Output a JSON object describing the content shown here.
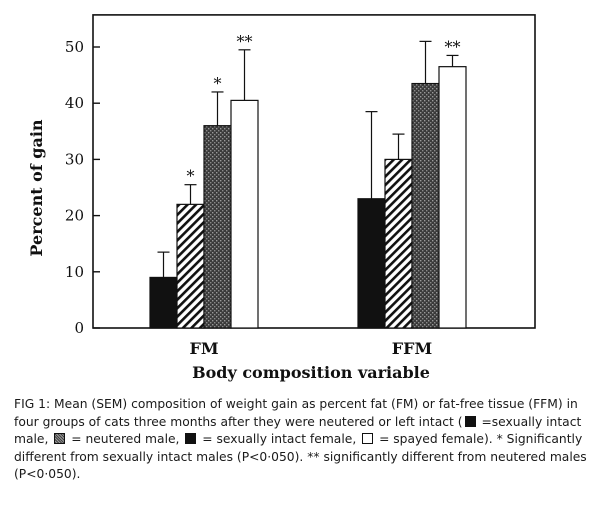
{
  "chart_data": {
    "type": "bar",
    "categories": [
      "FM",
      "FFM"
    ],
    "xlabel": "Body composition variable",
    "ylabel": "Percent of gain",
    "ylim": [
      0,
      55
    ],
    "yticks": [
      0,
      10,
      20,
      30,
      40,
      50
    ],
    "grid": false,
    "series": [
      {
        "name": "sexually intact male",
        "pattern": "black",
        "values": [
          9,
          23
        ],
        "errors": [
          4.5,
          15.5
        ],
        "annotations": [
          "",
          ""
        ]
      },
      {
        "name": "neutered male",
        "pattern": "hatched",
        "values": [
          22,
          30
        ],
        "errors": [
          3.5,
          4.5
        ],
        "annotations": [
          "*",
          ""
        ]
      },
      {
        "name": "sexually intact female",
        "pattern": "stippled",
        "values": [
          36,
          43.5
        ],
        "errors": [
          6,
          7.5
        ],
        "annotations": [
          "*",
          ""
        ]
      },
      {
        "name": "spayed female",
        "pattern": "white",
        "values": [
          40.5,
          46.5
        ],
        "errors": [
          9,
          2
        ],
        "annotations": [
          "**",
          "**"
        ]
      }
    ]
  },
  "caption": {
    "p1": "FIG 1: Mean (SEM) composition of weight gain as percent fat (FM) or fat-free tissue (FFM) in four groups of cats three months after they were neutered or left intact (",
    "p2": " =sexually intact male, ",
    "p3": " = neutered male, ",
    "p4": " = sexually intact female, ",
    "p5": " = spayed female). * Significantly different from sexually intact males (P<0·050). ** significantly different from neutered males (P<0·050)."
  },
  "colors": {
    "ink": "#111111",
    "background": "#ffffff"
  }
}
